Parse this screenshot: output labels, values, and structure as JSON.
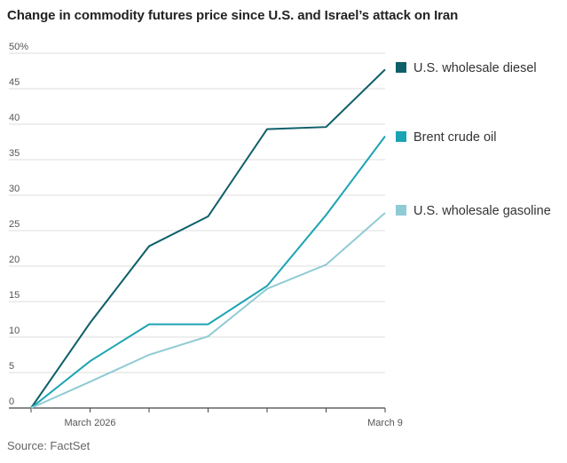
{
  "chart_data": {
    "type": "line",
    "title": "Change in commodity futures price since U.S. and Israel’s attack on Iran",
    "source": "Source: FactSet",
    "x": [
      0,
      1,
      2,
      3,
      4,
      5,
      6
    ],
    "x_tick_labels": [
      {
        "index": 1,
        "label": "March 2026"
      },
      {
        "index": 6,
        "label": "March 9"
      }
    ],
    "ylim": [
      0,
      50
    ],
    "y_ticks": [
      0,
      5,
      10,
      15,
      20,
      25,
      30,
      35,
      40,
      45,
      50
    ],
    "y_tick_labels": [
      "0",
      "5",
      "10",
      "15",
      "20",
      "25",
      "30",
      "35",
      "40",
      "45",
      "50%"
    ],
    "grid": true,
    "legend_position": "right",
    "series": [
      {
        "name": "U.S. wholesale diesel",
        "color": "#0e5f69",
        "values": [
          0,
          12,
          22.8,
          27,
          39.3,
          39.6,
          47.7
        ]
      },
      {
        "name": "Brent crude oil",
        "color": "#1aa3b3",
        "values": [
          0,
          6.6,
          11.8,
          11.8,
          17.2,
          27.2,
          38.3
        ]
      },
      {
        "name": "U.S. wholesale gasoline",
        "color": "#8fcbd4",
        "values": [
          0,
          3.7,
          7.5,
          10.1,
          16.8,
          20.2,
          27.5
        ]
      }
    ]
  }
}
